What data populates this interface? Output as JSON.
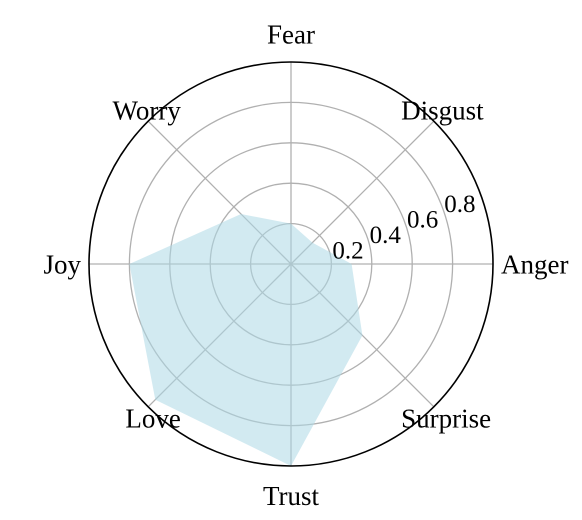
{
  "chart_data": {
    "type": "radar",
    "title": "",
    "axes": [
      "Anger",
      "Disgust",
      "Fear",
      "Worry",
      "Joy",
      "Love",
      "Trust",
      "Surprise"
    ],
    "values": [
      0.3,
      0.15,
      0.2,
      0.35,
      0.8,
      0.95,
      1.0,
      0.5
    ],
    "r_ticks": [
      0.2,
      0.4,
      0.6,
      0.8
    ],
    "r_tick_labels": [
      "0.2",
      "0.4",
      "0.6",
      "0.8"
    ],
    "r_lim": [
      0,
      1.0
    ],
    "grid": true,
    "fill_color": "#add8e6",
    "fill_opacity": 0.55,
    "grid_color": "#b0b0b0",
    "outer_circle_color": "#000000"
  }
}
